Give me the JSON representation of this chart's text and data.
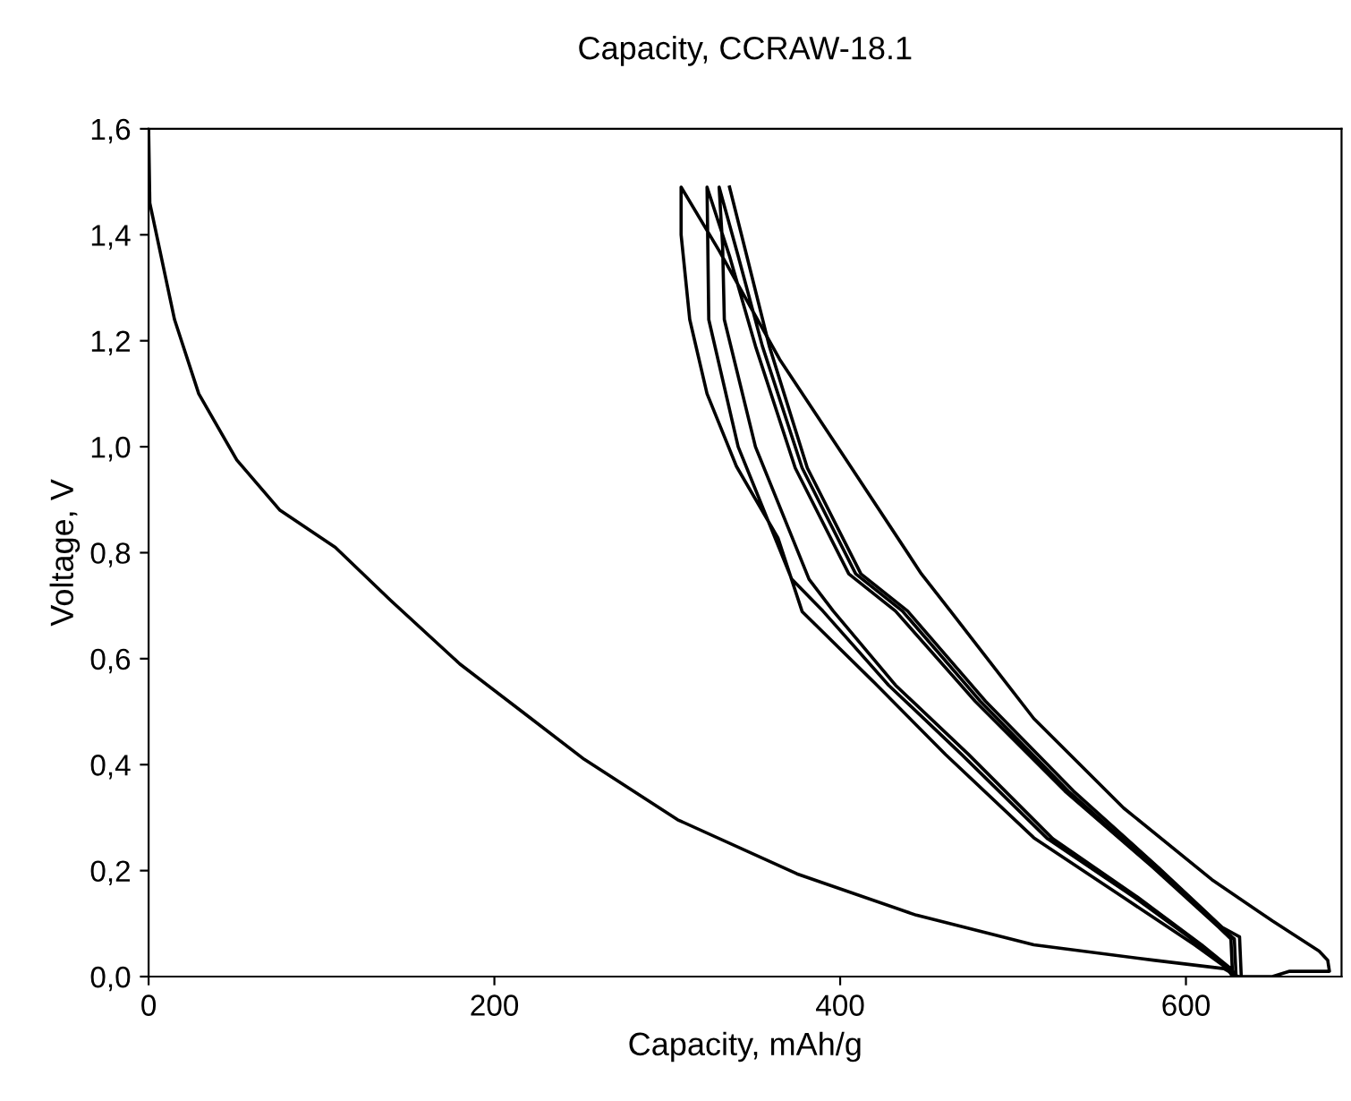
{
  "chart_data": {
    "type": "line",
    "title": "Capacity, CCRAW-18.1",
    "xlabel": "Capacity, mAh/g",
    "ylabel": "Voltage, V",
    "xlim": [
      0,
      690
    ],
    "ylim": [
      0,
      1.6
    ],
    "xticks": [
      0,
      200,
      400,
      600
    ],
    "yticks": [
      {
        "value": 0,
        "label": "0,0"
      },
      {
        "value": 0.2,
        "label": "0,2"
      },
      {
        "value": 0.4,
        "label": "0,4"
      },
      {
        "value": 0.6,
        "label": "0,6"
      },
      {
        "value": 0.8,
        "label": "0,8"
      },
      {
        "value": 1.0,
        "label": "1,0"
      },
      {
        "value": 1.2,
        "label": "1,2"
      },
      {
        "value": 1.4,
        "label": "1,4"
      },
      {
        "value": 1.6,
        "label": "1,6"
      }
    ],
    "grid": false,
    "legend": false,
    "marker": "none",
    "line_style": "solid",
    "series": [
      {
        "color": "#000000",
        "x": [
          0,
          0.7,
          15,
          29,
          51,
          76,
          108,
          140,
          180,
          216,
          252,
          306,
          375,
          444,
          512,
          581,
          622,
          630
        ],
        "values": [
          1.6,
          1.46,
          1.24,
          1.1,
          0.975,
          0.88,
          0.81,
          0.71,
          0.59,
          0.5,
          0.41,
          0.296,
          0.194,
          0.116,
          0.06,
          0.031,
          0.015,
          0
        ]
      },
      {
        "color": "#000000",
        "x": [
          627,
          624,
          605,
          564,
          512,
          461,
          420,
          378,
          364,
          340,
          323,
          313,
          308,
          308,
          330,
          365,
          406,
          447,
          464,
          512,
          564,
          615,
          650,
          677,
          682,
          683,
          660,
          650,
          628,
          625,
          608,
          570,
          520,
          470,
          428,
          390,
          372,
          341,
          324,
          323,
          336,
          351,
          374,
          405,
          432,
          478,
          530,
          581,
          619,
          626,
          627,
          629,
          626,
          609,
          572,
          523,
          474,
          432,
          396,
          382,
          351,
          333,
          332,
          330,
          341,
          355,
          378,
          409,
          436,
          481,
          532,
          582,
          620,
          628,
          629
        ],
        "values": [
          0,
          0.015,
          0.06,
          0.149,
          0.262,
          0.419,
          0.554,
          0.689,
          0.828,
          0.963,
          1.1,
          1.24,
          1.4,
          1.49,
          1.37,
          1.165,
          0.963,
          0.76,
          0.689,
          0.487,
          0.318,
          0.183,
          0.105,
          0.048,
          0.031,
          0.01,
          0.01,
          0,
          0,
          0.015,
          0.06,
          0.15,
          0.26,
          0.42,
          0.55,
          0.69,
          0.75,
          1.0,
          1.24,
          1.49,
          1.36,
          1.19,
          0.96,
          0.76,
          0.69,
          0.52,
          0.35,
          0.206,
          0.093,
          0.071,
          0,
          0,
          0.015,
          0.06,
          0.15,
          0.26,
          0.42,
          0.55,
          0.69,
          0.75,
          1.0,
          1.24,
          1.38,
          1.49,
          1.36,
          1.19,
          0.96,
          0.76,
          0.69,
          0.52,
          0.35,
          0.206,
          0.093,
          0.071,
          0
        ]
      },
      {
        "color": "#000000",
        "x": [
          336,
          346,
          359,
          381,
          412,
          439,
          484,
          535,
          584,
          621,
          631,
          632
        ],
        "values": [
          1.49,
          1.36,
          1.19,
          0.96,
          0.76,
          0.69,
          0.52,
          0.35,
          0.206,
          0.093,
          0.075,
          0
        ]
      }
    ]
  }
}
